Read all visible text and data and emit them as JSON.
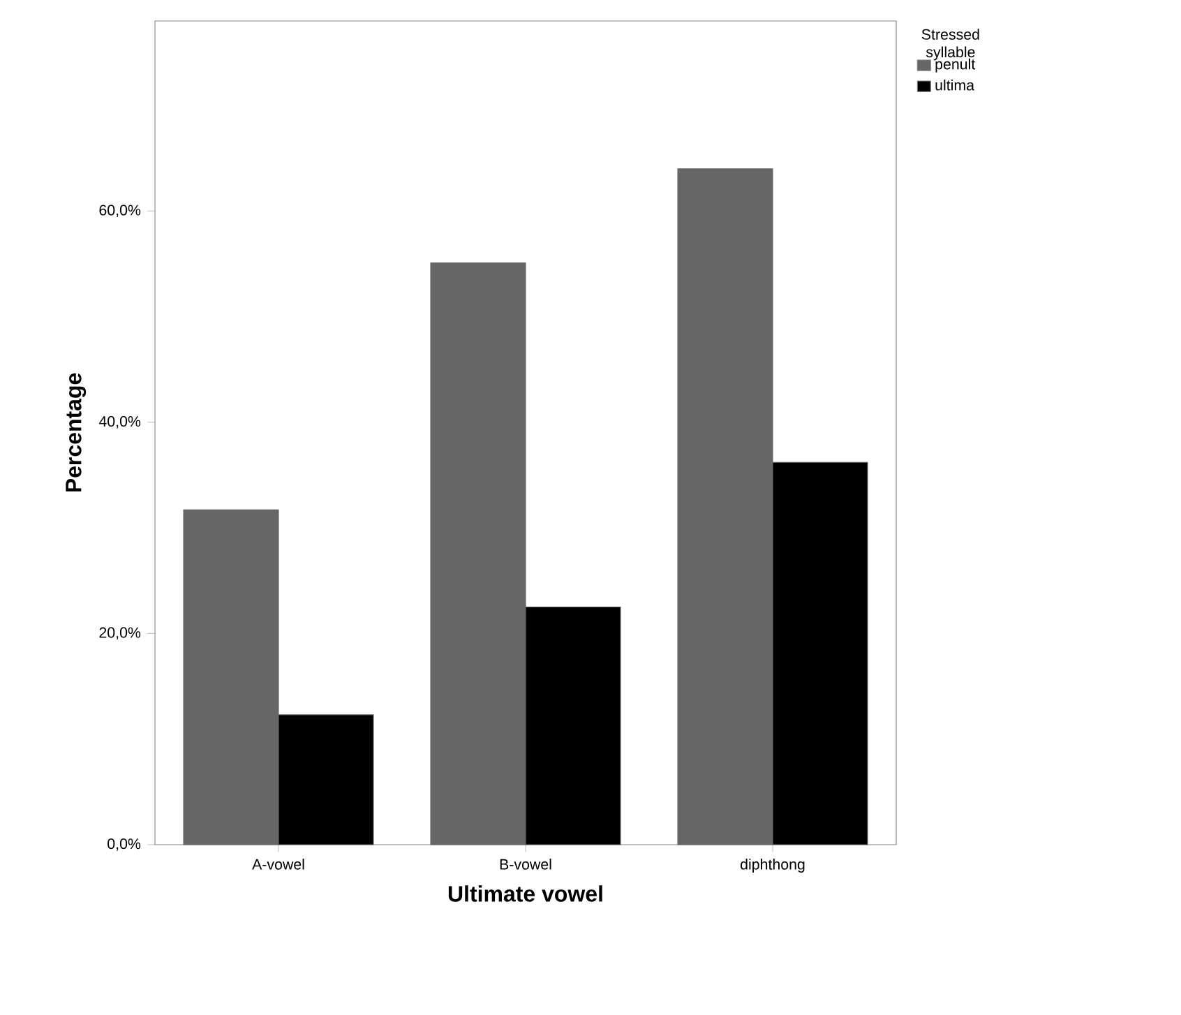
{
  "chart_data": {
    "type": "bar",
    "xlabel": "Ultimate vowel",
    "ylabel": "Percentage",
    "legend_title": "Stressed syllable",
    "categories": [
      "A-vowel",
      "B-vowel",
      "diphthong"
    ],
    "series": [
      {
        "name": "penult",
        "color": "#666666",
        "values": [
          31.7,
          55.1,
          64.0
        ]
      },
      {
        "name": "ultima",
        "color": "#000000",
        "values": [
          12.3,
          22.5,
          36.2
        ]
      }
    ],
    "ylim": [
      0,
      78
    ],
    "yticks": [
      {
        "value": 0,
        "label": "0,0%"
      },
      {
        "value": 20,
        "label": "20,0%"
      },
      {
        "value": 40,
        "label": "40,0%"
      },
      {
        "value": 60,
        "label": "60,0%"
      }
    ],
    "grid": false,
    "legend": "top right"
  }
}
